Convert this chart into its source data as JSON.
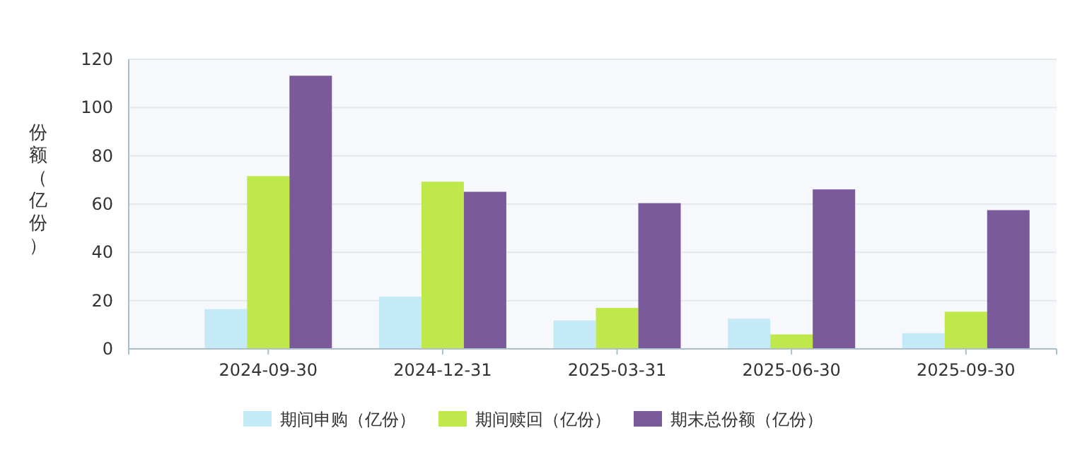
{
  "chart_data": {
    "type": "bar",
    "ylabel": "份额（亿份）",
    "categories": [
      "2024-09-30",
      "2024-12-31",
      "2025-03-31",
      "2025-06-30",
      "2025-09-30"
    ],
    "series": [
      {
        "name": "期间申购（亿份）",
        "color": "#c4eaf7",
        "values": [
          16.5,
          21.7,
          11.8,
          12.5,
          6.5
        ]
      },
      {
        "name": "期间赎回（亿份）",
        "color": "#bfe84a",
        "values": [
          71.6,
          69.3,
          17.0,
          6.0,
          15.4
        ]
      },
      {
        "name": "期末总份额（亿份）",
        "color": "#7b5a9c",
        "values": [
          113.2,
          65.1,
          60.4,
          66.1,
          57.5
        ]
      }
    ],
    "ylim": [
      0,
      120
    ],
    "yticks": [
      0,
      20,
      40,
      60,
      80,
      100,
      120
    ],
    "grid": "y",
    "legend": "bottom"
  }
}
